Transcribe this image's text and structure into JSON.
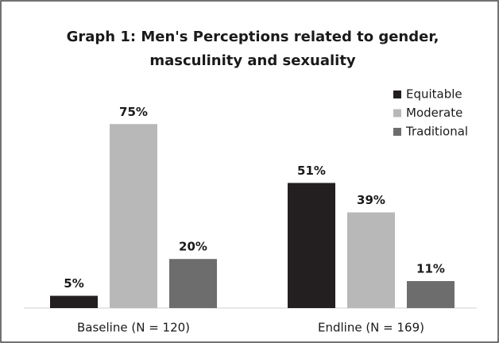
{
  "chart_data": {
    "type": "bar",
    "title": [
      "Graph 1: Men's Perceptions related to gender,",
      "masculinity and sexuality"
    ],
    "categories": [
      "Baseline (N = 120)",
      "Endline (N = 169)"
    ],
    "series": [
      {
        "name": "Equitable",
        "color": "#231f20",
        "values": [
          5,
          51
        ],
        "value_labels": [
          "5%",
          "51%"
        ]
      },
      {
        "name": "Moderate",
        "color": "#b8b8b8",
        "values": [
          75,
          39
        ],
        "value_labels": [
          "75%",
          "39%"
        ]
      },
      {
        "name": "Traditional",
        "color": "#6d6d6d",
        "values": [
          20,
          11
        ],
        "value_labels": [
          "20%",
          "11%"
        ]
      }
    ],
    "legend": "top-right"
  }
}
